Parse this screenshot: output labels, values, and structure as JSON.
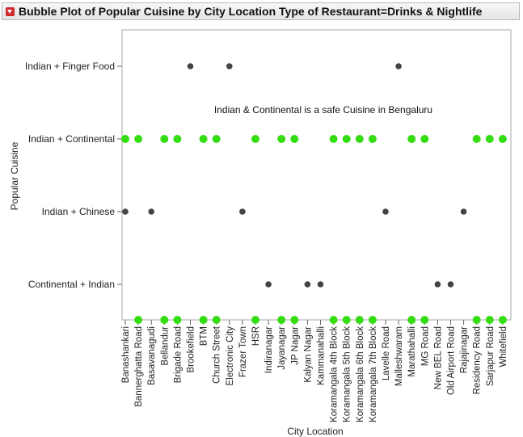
{
  "header": {
    "title": "Bubble Plot of Popular Cuisine by City Location Type of Restaurant=Drinks & Nightlife",
    "disclosure_icon": "red-triangle-menu-icon"
  },
  "chart_data": {
    "type": "scatter",
    "title": "Bubble Plot of Popular Cuisine by City Location Type of Restaurant=Drinks & Nightlife",
    "xlabel": "City Location",
    "ylabel": "Popular Cuisine",
    "annotation": "Indian & Continental is a safe Cuisine in Bengaluru",
    "categories_x": [
      "Banashankari",
      "Bannerghatta Road",
      "Basavanagudi",
      "Bellandur",
      "Brigade Road",
      "Brookefield",
      "BTM",
      "Church Street",
      "Electronic City",
      "Frazer Town",
      "HSR",
      "Indiranagar",
      "Jayanagar",
      "JP Nagar",
      "Kalyan Nagar",
      "Kammanahalli",
      "Koramangala 4th Block",
      "Koramangala 5th Block",
      "Koramangala 6th Block",
      "Koramangala 7th Block",
      "Lavelle Road",
      "Malleshwaram",
      "Marathahalli",
      "MG Road",
      "New BEL Road",
      "Old Airport Road",
      "Rajajinagar",
      "Residency Road",
      "Sarjapur Road",
      "Whitefield"
    ],
    "categories_y": [
      "Indian + Finger Food",
      "Indian + Continental",
      "Indian + Chinese",
      "Continental + Indian"
    ],
    "highlight_color": "#33dd11",
    "default_color": "#444444",
    "grid": false,
    "points": [
      {
        "x": "Brookefield",
        "y": "Indian + Finger Food",
        "highlight": false
      },
      {
        "x": "Electronic City",
        "y": "Indian + Finger Food",
        "highlight": false
      },
      {
        "x": "Malleshwaram",
        "y": "Indian + Finger Food",
        "highlight": false
      },
      {
        "x": "Banashankari",
        "y": "Indian + Continental",
        "highlight": true
      },
      {
        "x": "Bannerghatta Road",
        "y": "Indian + Continental",
        "highlight": true
      },
      {
        "x": "Bellandur",
        "y": "Indian + Continental",
        "highlight": true
      },
      {
        "x": "Brigade Road",
        "y": "Indian + Continental",
        "highlight": true
      },
      {
        "x": "BTM",
        "y": "Indian + Continental",
        "highlight": true
      },
      {
        "x": "Church Street",
        "y": "Indian + Continental",
        "highlight": true
      },
      {
        "x": "HSR",
        "y": "Indian + Continental",
        "highlight": true
      },
      {
        "x": "Jayanagar",
        "y": "Indian + Continental",
        "highlight": true
      },
      {
        "x": "JP Nagar",
        "y": "Indian + Continental",
        "highlight": true
      },
      {
        "x": "Koramangala 4th Block",
        "y": "Indian + Continental",
        "highlight": true
      },
      {
        "x": "Koramangala 5th Block",
        "y": "Indian + Continental",
        "highlight": true
      },
      {
        "x": "Koramangala 6th Block",
        "y": "Indian + Continental",
        "highlight": true
      },
      {
        "x": "Koramangala 7th Block",
        "y": "Indian + Continental",
        "highlight": true
      },
      {
        "x": "Marathahalli",
        "y": "Indian + Continental",
        "highlight": true
      },
      {
        "x": "MG Road",
        "y": "Indian + Continental",
        "highlight": true
      },
      {
        "x": "Residency Road",
        "y": "Indian + Continental",
        "highlight": true
      },
      {
        "x": "Sarjapur Road",
        "y": "Indian + Continental",
        "highlight": true
      },
      {
        "x": "Whitefield",
        "y": "Indian + Continental",
        "highlight": true
      },
      {
        "x": "Banashankari",
        "y": "Indian + Chinese",
        "highlight": false
      },
      {
        "x": "Basavanagudi",
        "y": "Indian + Chinese",
        "highlight": false
      },
      {
        "x": "Frazer Town",
        "y": "Indian + Chinese",
        "highlight": false
      },
      {
        "x": "Lavelle Road",
        "y": "Indian + Chinese",
        "highlight": false
      },
      {
        "x": "Rajajinagar",
        "y": "Indian + Chinese",
        "highlight": false
      },
      {
        "x": "Indiranagar",
        "y": "Continental + Indian",
        "highlight": false
      },
      {
        "x": "Kalyan Nagar",
        "y": "Continental + Indian",
        "highlight": false
      },
      {
        "x": "Kammanahalli",
        "y": "Continental + Indian",
        "highlight": false
      },
      {
        "x": "New BEL Road",
        "y": "Continental + Indian",
        "highlight": false
      },
      {
        "x": "Old Airport Road",
        "y": "Continental + Indian",
        "highlight": false
      }
    ],
    "axis_markers": [
      "Bannerghatta Road",
      "Bellandur",
      "Brigade Road",
      "BTM",
      "Church Street",
      "HSR",
      "Jayanagar",
      "JP Nagar",
      "Koramangala 4th Block",
      "Koramangala 5th Block",
      "Koramangala 6th Block",
      "Koramangala 7th Block",
      "Marathahalli",
      "MG Road",
      "Residency Road",
      "Sarjapur Road",
      "Whitefield"
    ]
  }
}
